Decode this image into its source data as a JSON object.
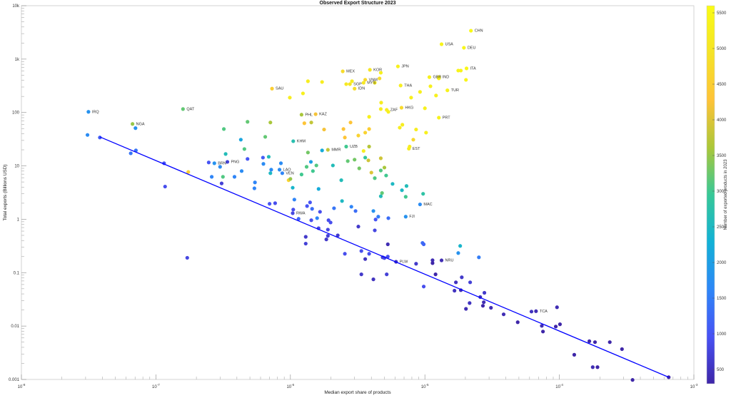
{
  "chart_data": {
    "type": "scatter",
    "title": "Observed Export Structure 2023",
    "xlabel": "Median export share of products",
    "ylabel": "Total exports (Billions USD)",
    "xscale": "log",
    "yscale": "log",
    "xlim": [
      1e-08,
      0.001
    ],
    "ylim": [
      0.001,
      10000
    ],
    "grid": false,
    "x_ticks": [
      1e-08,
      1e-07,
      1e-06,
      1e-05,
      0.0001,
      0.001
    ],
    "x_tick_labels": [
      {
        "base": "10",
        "exp": "-8"
      },
      {
        "base": "10",
        "exp": "-7"
      },
      {
        "base": "10",
        "exp": "-6"
      },
      {
        "base": "10",
        "exp": "-5"
      },
      {
        "base": "10",
        "exp": "-4"
      },
      {
        "base": "10",
        "exp": "-3"
      }
    ],
    "y_ticks": [
      0.001,
      0.01,
      0.1,
      1,
      10,
      100,
      1000,
      10000
    ],
    "y_tick_labels": [
      "0.001",
      "0.01",
      "0.1",
      "1",
      "10",
      "100",
      "1k",
      "10k"
    ],
    "colorbar": {
      "label": "Number of exported products in 2023",
      "clim": [
        300,
        5600
      ],
      "ticks": [
        500,
        1000,
        1500,
        2000,
        2500,
        3000,
        3500,
        4000,
        4500,
        5000,
        5500
      ],
      "tick_labels": [
        "500",
        "1000",
        "1500",
        "2000",
        "2500",
        "3000",
        "3500",
        "4000",
        "4500",
        "5000",
        "5500"
      ],
      "colormap": "parula"
    },
    "fit_line": {
      "color": "#0000ff",
      "x": [
        3.83e-08,
        0.00065
      ],
      "y": [
        34.9,
        0.0011
      ]
    },
    "labeled_points": [
      [
        2.2e-05,
        3400,
        5550,
        "CHN"
      ],
      [
        1.33e-05,
        1900,
        5400,
        "USA"
      ],
      [
        1.95e-05,
        1630,
        5450,
        "DEU"
      ],
      [
        6.3e-06,
        730,
        5300,
        "JPN"
      ],
      [
        2.45e-06,
        590,
        4800,
        "MEX"
      ],
      [
        3.9e-06,
        630,
        5000,
        "KOR"
      ],
      [
        2.04e-05,
        670,
        5450,
        "ITA"
      ],
      [
        1.08e-05,
        460,
        5300,
        "GBR"
      ],
      [
        1.27e-05,
        460,
        5350,
        "IND"
      ],
      [
        3.6e-06,
        410,
        4700,
        "VNM"
      ],
      [
        3.5e-06,
        360,
        5100,
        "MYS"
      ],
      [
        2.77e-06,
        340,
        5000,
        "SGP"
      ],
      [
        3e-06,
        280,
        4800,
        "IDN"
      ],
      [
        6.6e-06,
        320,
        5250,
        "THA"
      ],
      [
        1.47e-05,
        260,
        5350,
        "TUR"
      ],
      [
        7.3e-07,
        280,
        4500,
        "SAU"
      ],
      [
        5.2e-06,
        112,
        5200,
        "ZAF"
      ],
      [
        6.7e-06,
        123,
        4750,
        "HKG"
      ],
      [
        1.27e-05,
        80,
        5350,
        "PRT"
      ],
      [
        1.21e-06,
        91,
        3600,
        "PHL"
      ],
      [
        1.54e-06,
        93,
        4200,
        "KAZ"
      ],
      [
        1.59e-07,
        116,
        3200,
        "QAT"
      ],
      [
        3.15e-08,
        103,
        1800,
        "IRQ"
      ],
      [
        6.7e-08,
        61,
        3500,
        "NGA"
      ],
      [
        1.05e-06,
        29,
        2700,
        "KHM"
      ],
      [
        2.6e-06,
        23,
        3000,
        "UZB"
      ],
      [
        1.9e-06,
        20,
        3800,
        "MMR"
      ],
      [
        7.6e-06,
        21,
        5200,
        "EST"
      ],
      [
        2.72e-07,
        11.2,
        1800,
        "BRN"
      ],
      [
        3.4e-07,
        11.9,
        700,
        "PNG"
      ],
      [
        8.3e-07,
        8.5,
        1700,
        "LAO"
      ],
      [
        8.7e-07,
        7.3,
        1600,
        "VEN"
      ],
      [
        1.04e-06,
        1.3,
        800,
        "RWA"
      ],
      [
        9.2e-06,
        1.9,
        1700,
        "MAC"
      ],
      [
        7.2e-06,
        1.12,
        1800,
        "FJI"
      ],
      [
        6.1e-06,
        0.16,
        500,
        "PLW"
      ],
      [
        1.33e-05,
        0.17,
        400,
        "NRU"
      ],
      [
        6.7e-05,
        0.019,
        400,
        "TCA"
      ]
    ],
    "points": [
      [
        1.35e-06,
        385,
        5200
      ],
      [
        1.72e-06,
        373,
        5200
      ],
      [
        1.24e-06,
        228,
        5300
      ],
      [
        9.9e-07,
        190,
        5200
      ],
      [
        2.6e-06,
        340,
        5100
      ],
      [
        2.87e-06,
        385,
        5200
      ],
      [
        4.24e-06,
        361,
        5200
      ],
      [
        4.6e-06,
        435,
        4800
      ],
      [
        4.7e-06,
        556,
        5300
      ],
      [
        9.2e-06,
        243,
        5300
      ],
      [
        7.9e-06,
        190,
        5300
      ],
      [
        1.1e-05,
        310,
        5300
      ],
      [
        1.21e-05,
        208,
        5300
      ],
      [
        1.27e-05,
        435,
        5300
      ],
      [
        1.77e-05,
        610,
        5400
      ],
      [
        1.85e-05,
        610,
        5400
      ],
      [
        2.02e-05,
        409,
        5400
      ],
      [
        4.73e-06,
        153,
        5200
      ],
      [
        4.7e-06,
        116,
        5200
      ],
      [
        5.35e-06,
        103,
        5300
      ],
      [
        3.85e-06,
        83,
        5300
      ],
      [
        1e-05,
        120,
        5300
      ],
      [
        1.27e-06,
        63,
        4300
      ],
      [
        1.43e-06,
        65,
        3800
      ],
      [
        1.78e-06,
        48,
        4200
      ],
      [
        2.8e-06,
        65,
        4300
      ],
      [
        2.48e-06,
        49,
        4300
      ],
      [
        3.85e-06,
        49,
        4500
      ],
      [
        3.6e-06,
        42,
        4600
      ],
      [
        3.2e-06,
        37,
        4600
      ],
      [
        2.54e-06,
        34,
        4300
      ],
      [
        6.5e-06,
        52,
        5200
      ],
      [
        6.8e-06,
        59,
        5200
      ],
      [
        8.6e-06,
        48,
        5200
      ],
      [
        1.02e-05,
        42,
        5300
      ],
      [
        8.2e-06,
        31,
        4700
      ],
      [
        7.7e-06,
        23,
        5200
      ],
      [
        3.5e-06,
        19,
        5200
      ],
      [
        3.85e-06,
        23,
        3700
      ],
      [
        1.72e-06,
        19.5,
        2200
      ],
      [
        1.35e-06,
        17.8,
        3300
      ],
      [
        4.7e-06,
        13.9,
        3900
      ],
      [
        3.6e-06,
        14.3,
        2900
      ],
      [
        3.8e-06,
        12.7,
        3900
      ],
      [
        3e-06,
        13.1,
        3300
      ],
      [
        2.67e-06,
        12.3,
        3200
      ],
      [
        2.07e-06,
        10.2,
        2600
      ],
      [
        1.56e-06,
        10.2,
        3100
      ],
      [
        1.42e-06,
        11.9,
        2000
      ],
      [
        1.32e-06,
        9.6,
        3100
      ],
      [
        1.47e-06,
        8.0,
        3000
      ],
      [
        1.21e-06,
        6.9,
        3000
      ],
      [
        3.25e-06,
        9.0,
        3300
      ],
      [
        5e-06,
        9.3,
        3600
      ],
      [
        4.7e-06,
        8.2,
        3100
      ],
      [
        4e-06,
        7.5,
        4000
      ],
      [
        5.15e-06,
        6.6,
        3000
      ],
      [
        4.24e-06,
        5.9,
        3100
      ],
      [
        2.39e-06,
        5.4,
        2600
      ],
      [
        5.75e-06,
        4.6,
        2500
      ],
      [
        7.3e-06,
        4.2,
        2600
      ],
      [
        6.75e-06,
        3.5,
        2500
      ],
      [
        1.62e-06,
        3.7,
        2200
      ],
      [
        4.8e-06,
        3.1,
        3200
      ],
      [
        4.7e-06,
        2.7,
        2600
      ],
      [
        7.2e-06,
        2.64,
        3000
      ],
      [
        9.7e-06,
        3.0,
        2800
      ],
      [
        2.42e-06,
        2.2,
        2500
      ],
      [
        1.4e-06,
        2.07,
        1000
      ],
      [
        1.33e-06,
        1.77,
        1000
      ],
      [
        1.45e-06,
        1.57,
        1300
      ],
      [
        1.66e-06,
        1.38,
        900
      ],
      [
        2.11e-06,
        1.61,
        1400
      ],
      [
        2.84e-06,
        1.72,
        1600
      ],
      [
        3.05e-06,
        1.43,
        1300
      ],
      [
        4.14e-06,
        1.43,
        1800
      ],
      [
        4.5e-06,
        1.12,
        1500
      ],
      [
        5.35e-06,
        1.05,
        1300
      ],
      [
        1.58e-06,
        1.05,
        1600
      ],
      [
        4.3e-06,
        0.99,
        1000
      ],
      [
        1.43e-06,
        0.96,
        900
      ],
      [
        1.92e-06,
        0.96,
        900
      ],
      [
        3.1e-08,
        38,
        1700
      ],
      [
        3.83e-08,
        34,
        1100
      ],
      [
        7.05e-08,
        51,
        1800
      ],
      [
        7.1e-08,
        19.5,
        1400
      ],
      [
        6.5e-08,
        17.2,
        1400
      ],
      [
        1.15e-07,
        11.2,
        1000
      ],
      [
        1.74e-07,
        7.7,
        4500
      ],
      [
        1.17e-07,
        4.1,
        900
      ],
      [
        2.47e-07,
        11.6,
        1000
      ],
      [
        3e-07,
        9.6,
        1700
      ],
      [
        2.6e-07,
        6.25,
        1600
      ],
      [
        3.15e-07,
        6.25,
        3100
      ],
      [
        3.08e-07,
        4.7,
        700
      ],
      [
        3.84e-07,
        6.25,
        1600
      ],
      [
        4.34e-07,
        8.0,
        1700
      ],
      [
        4.8e-07,
        13.5,
        1000
      ],
      [
        3.3e-07,
        16.7,
        2600
      ],
      [
        4.55e-07,
        20.7,
        3100
      ],
      [
        4.28e-07,
        31,
        2100
      ],
      [
        3.2e-07,
        49,
        3100
      ],
      [
        4.8e-07,
        67,
        3200
      ],
      [
        7.1e-07,
        65,
        3600
      ],
      [
        6.5e-07,
        35,
        3200
      ],
      [
        6.25e-07,
        14.3,
        1100
      ],
      [
        6.9e-07,
        14.8,
        2600
      ],
      [
        6.3e-07,
        10.9,
        1700
      ],
      [
        8.5e-07,
        11.2,
        1700
      ],
      [
        7.2e-07,
        8.5,
        1700
      ],
      [
        7.1e-07,
        7.3,
        2500
      ],
      [
        9.7e-07,
        5.4,
        4600
      ],
      [
        1e-06,
        5.7,
        3500
      ],
      [
        5.45e-07,
        4.9,
        1600
      ],
      [
        5.4e-07,
        3.8,
        1600
      ],
      [
        1.04e-06,
        3.9,
        2400
      ],
      [
        1.07e-06,
        2.34,
        1600
      ],
      [
        7e-07,
        1.95,
        1000
      ],
      [
        7.7e-07,
        2.0,
        900
      ],
      [
        1.05e-06,
        1.52,
        900
      ],
      [
        1.15e-06,
        1.02,
        1200
      ],
      [
        1.99e-06,
        0.87,
        900
      ],
      [
        1.62e-06,
        0.68,
        800
      ],
      [
        1.9e-06,
        0.64,
        800
      ],
      [
        1.3e-06,
        0.47,
        600
      ],
      [
        1.3e-06,
        0.35,
        700
      ],
      [
        1.9e-06,
        0.49,
        700
      ],
      [
        1.85e-06,
        0.42,
        600
      ],
      [
        2.25e-06,
        0.5,
        600
      ],
      [
        3.2e-06,
        0.73,
        600
      ],
      [
        4.24e-06,
        0.62,
        800
      ],
      [
        5.3e-06,
        0.34,
        400
      ],
      [
        3.37e-06,
        0.255,
        900
      ],
      [
        3.85e-06,
        0.226,
        900
      ],
      [
        2.54e-06,
        0.226,
        900
      ],
      [
        3.6e-06,
        0.18,
        500
      ],
      [
        4.85e-06,
        0.194,
        700
      ],
      [
        5e-06,
        0.188,
        800
      ],
      [
        5.3e-06,
        0.2,
        900
      ],
      [
        8.6e-06,
        0.147,
        600
      ],
      [
        3.37e-06,
        0.093,
        600
      ],
      [
        4.14e-06,
        0.075,
        500
      ],
      [
        5.2e-06,
        0.093,
        700
      ],
      [
        9.6e-06,
        0.36,
        1300
      ],
      [
        9.8e-06,
        0.34,
        1200
      ],
      [
        1.14e-05,
        0.171,
        400
      ],
      [
        1.14e-05,
        0.151,
        300
      ],
      [
        1.83e-05,
        0.317,
        2400
      ],
      [
        1.77e-05,
        0.233,
        1800
      ],
      [
        2.52e-05,
        0.194,
        1500
      ],
      [
        1.2e-05,
        0.093,
        300
      ],
      [
        1.7e-05,
        0.066,
        500
      ],
      [
        1.88e-05,
        0.082,
        600
      ],
      [
        2.17e-05,
        0.066,
        700
      ],
      [
        9.8e-06,
        0.055,
        900
      ],
      [
        1.66e-05,
        0.046,
        500
      ],
      [
        1.85e-05,
        0.047,
        400
      ],
      [
        2.58e-05,
        0.035,
        500
      ],
      [
        2.77e-05,
        0.042,
        600
      ],
      [
        2.74e-05,
        0.028,
        400
      ],
      [
        2.15e-05,
        0.027,
        500
      ],
      [
        2.7e-05,
        0.024,
        300
      ],
      [
        2.02e-05,
        0.021,
        400
      ],
      [
        3.1e-05,
        0.022,
        400
      ],
      [
        3.85e-05,
        0.0166,
        400
      ],
      [
        4.9e-05,
        0.0118,
        300
      ],
      [
        6.2e-05,
        0.0187,
        500
      ],
      [
        9.6e-05,
        0.0225,
        400
      ],
      [
        0.000101,
        0.0108,
        300
      ],
      [
        9.4e-05,
        0.0098,
        300
      ],
      [
        7.4e-05,
        0.0101,
        400
      ],
      [
        7.55e-05,
        0.0079,
        300
      ],
      [
        0.000129,
        0.0029,
        300
      ],
      [
        0.000167,
        0.0052,
        300
      ],
      [
        0.000184,
        0.005,
        300
      ],
      [
        0.000237,
        0.005,
        300
      ],
      [
        0.000292,
        0.0037,
        300
      ],
      [
        0.000177,
        0.0017,
        400
      ],
      [
        0.000192,
        0.0017,
        300
      ],
      [
        0.00035,
        0.00098,
        300
      ],
      [
        0.00065,
        0.0011,
        300
      ],
      [
        1.71e-07,
        0.19,
        800
      ]
    ]
  }
}
